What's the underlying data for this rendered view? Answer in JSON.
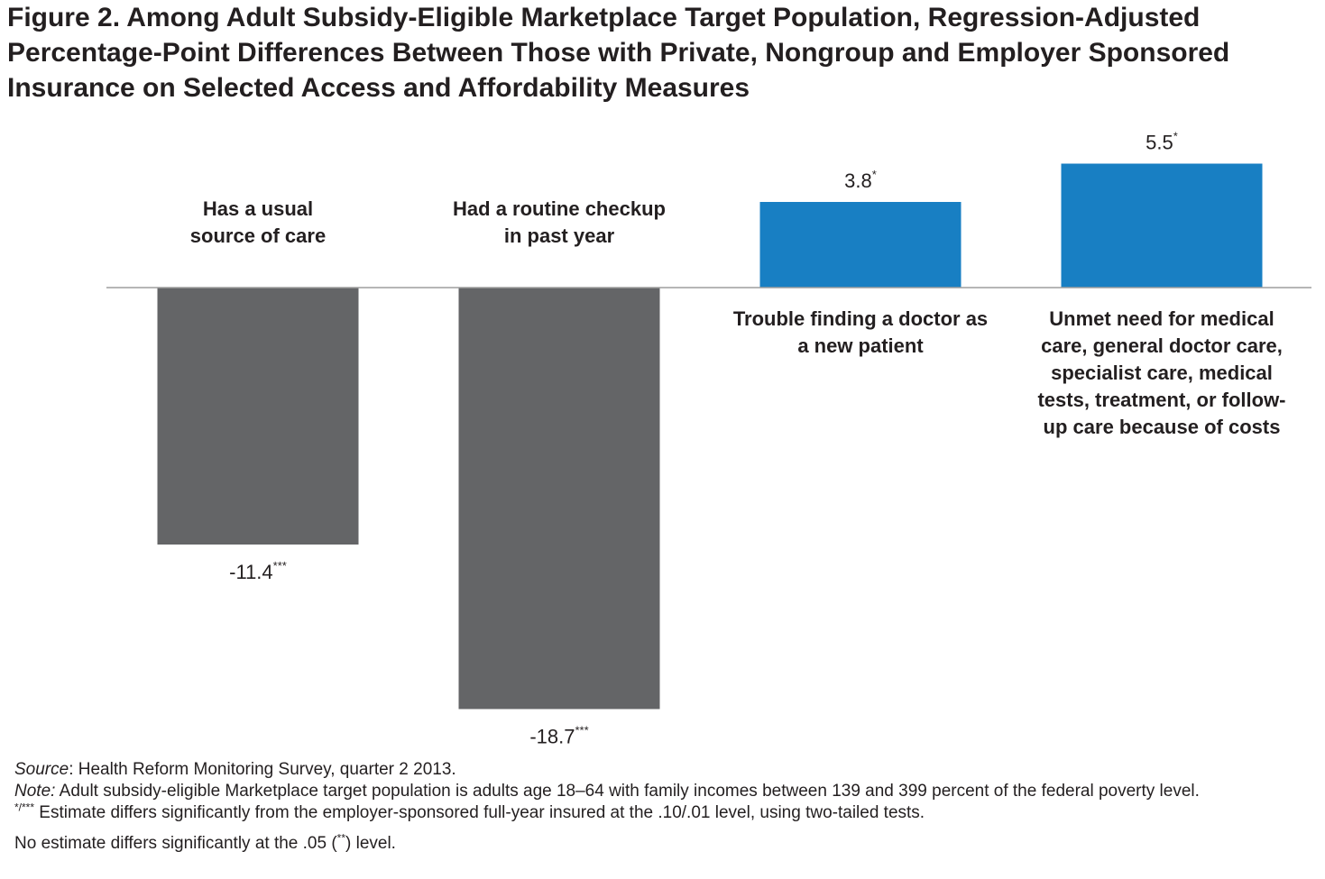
{
  "title": "Figure 2. Among Adult Subsidy-Eligible Marketplace Target Population, Regression-Adjusted Percentage-Point Differences Between Those with Private, Nongroup and Employer Sponsored Insurance on Selected Access and Affordability Measures",
  "chart_data": {
    "type": "bar",
    "categories": [
      "Has a usual source of care",
      "Had a routine checkup in past year",
      "Trouble finding a doctor as a new patient",
      "Unmet need for medical care, general doctor care, specialist care, medical tests, treatment, or follow-up care because of costs"
    ],
    "category_lines": [
      [
        "Has a usual",
        "source of care"
      ],
      [
        "Had a routine checkup",
        "in past year"
      ],
      [
        "Trouble finding a doctor as",
        "a new patient"
      ],
      [
        "Unmet need for medical",
        "care, general doctor care,",
        "specialist care, medical",
        "tests, treatment, or follow-",
        "up care because of costs"
      ]
    ],
    "values": [
      -11.4,
      -18.7,
      3.8,
      5.5
    ],
    "value_labels": [
      "-11.4",
      "-18.7",
      "3.8",
      "5.5"
    ],
    "significance": [
      "***",
      "***",
      "*",
      "*"
    ],
    "colors": {
      "negative": "#646567",
      "positive": "#187fc3",
      "baseline": "#9e9e9e"
    },
    "ylim": [
      -20,
      6
    ],
    "grid": false,
    "legend": "none"
  },
  "notes": {
    "source_label": "Source",
    "source_text": ": Health Reform Monitoring Survey, quarter 2 2013.",
    "note_label": "Note:",
    "note_text": " Adult subsidy-eligible Marketplace target population is adults age 18–64 with family incomes between 139 and 399 percent of the federal poverty level.",
    "sig_marker": "*/***",
    "sig_text": " Estimate differs significantly from the employer-sponsored full-year insured at the .10/.01 level,  using  two-tailed tests.",
    "no_sig_text_before": "No estimate differs significantly at the .05 (",
    "no_sig_marker": "**",
    "no_sig_text_after": ") level."
  }
}
